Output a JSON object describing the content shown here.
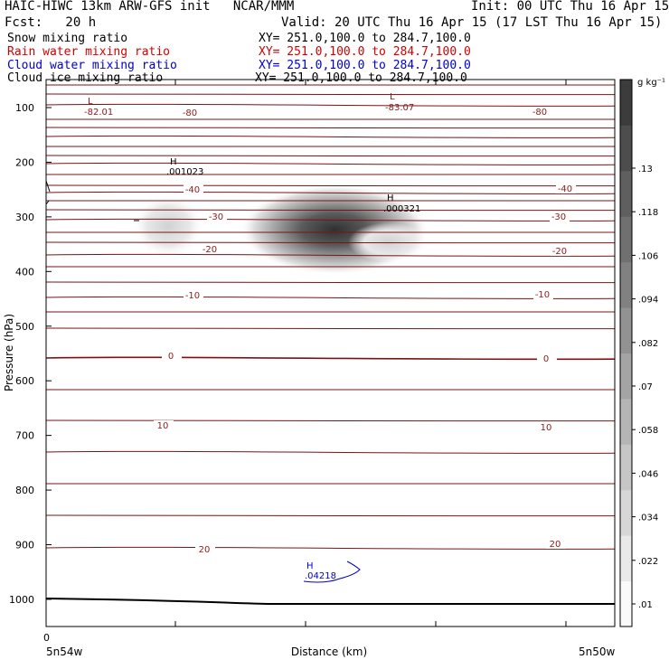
{
  "header": {
    "line1_left": "HAIC-HIWC 13km ARW-GFS init   NCAR/MMM",
    "line1_right": "Init: 00 UTC Thu 16 Apr 15",
    "line2_left": "Fcst:   20 h",
    "line2_right": "Valid: 20 UTC Thu 16 Apr 15 (17 LST Thu 16 Apr 15)",
    "fields": [
      {
        "name": "Snow mixing ratio",
        "xy": "XY= 251.0,100.0 to 284.7,100.0",
        "color": "#000000"
      },
      {
        "name": "Rain water mixing ratio",
        "xy": "XY= 251.0,100.0 to 284.7,100.0",
        "color": "#d40000"
      },
      {
        "name": "Cloud water mixing ratio",
        "xy": "XY= 251.0,100.0 to 284.7,100.0",
        "color": "#0000d0"
      },
      {
        "name": "Cloud ice mixing ratio",
        "xy": "XY= 251.0,100.0 to 284.7,100.0",
        "color": "#000000"
      }
    ]
  },
  "chart_data": {
    "type": "contour-cross-section",
    "ylabel": "Pressure (hPa)",
    "xlabel": "Distance (km)",
    "x_left_label": "5n54w",
    "x_right_label": "5n50w",
    "x_zero_label": "0",
    "y_ticks": [
      100,
      200,
      300,
      400,
      500,
      600,
      700,
      800,
      900,
      1000
    ],
    "ylim": [
      50,
      1050
    ],
    "colorbar": {
      "unit": "g kg⁻¹",
      "labels": [
        ".01",
        ".022",
        ".034",
        ".046",
        ".058",
        ".07",
        ".082",
        ".094",
        ".106",
        ".118",
        ".13"
      ]
    },
    "temperature_contour_labels": [
      "-80",
      "-80",
      "-40",
      "-40",
      "-30",
      "-30",
      "-20",
      "-20",
      "-10",
      "-10",
      "0",
      "0",
      "10",
      "10",
      "20",
      "20"
    ],
    "extrema": [
      {
        "type": "L",
        "value": "-82.01",
        "color": "#8b1a1a"
      },
      {
        "type": "L",
        "value": "-83.07",
        "color": "#8b1a1a"
      },
      {
        "type": "H",
        "value": ".001023",
        "color": "#000000"
      },
      {
        "type": "H",
        "value": ".000321",
        "color": "#000000"
      },
      {
        "type": "H",
        "value": ".04218",
        "color": "#0000d0"
      }
    ]
  }
}
